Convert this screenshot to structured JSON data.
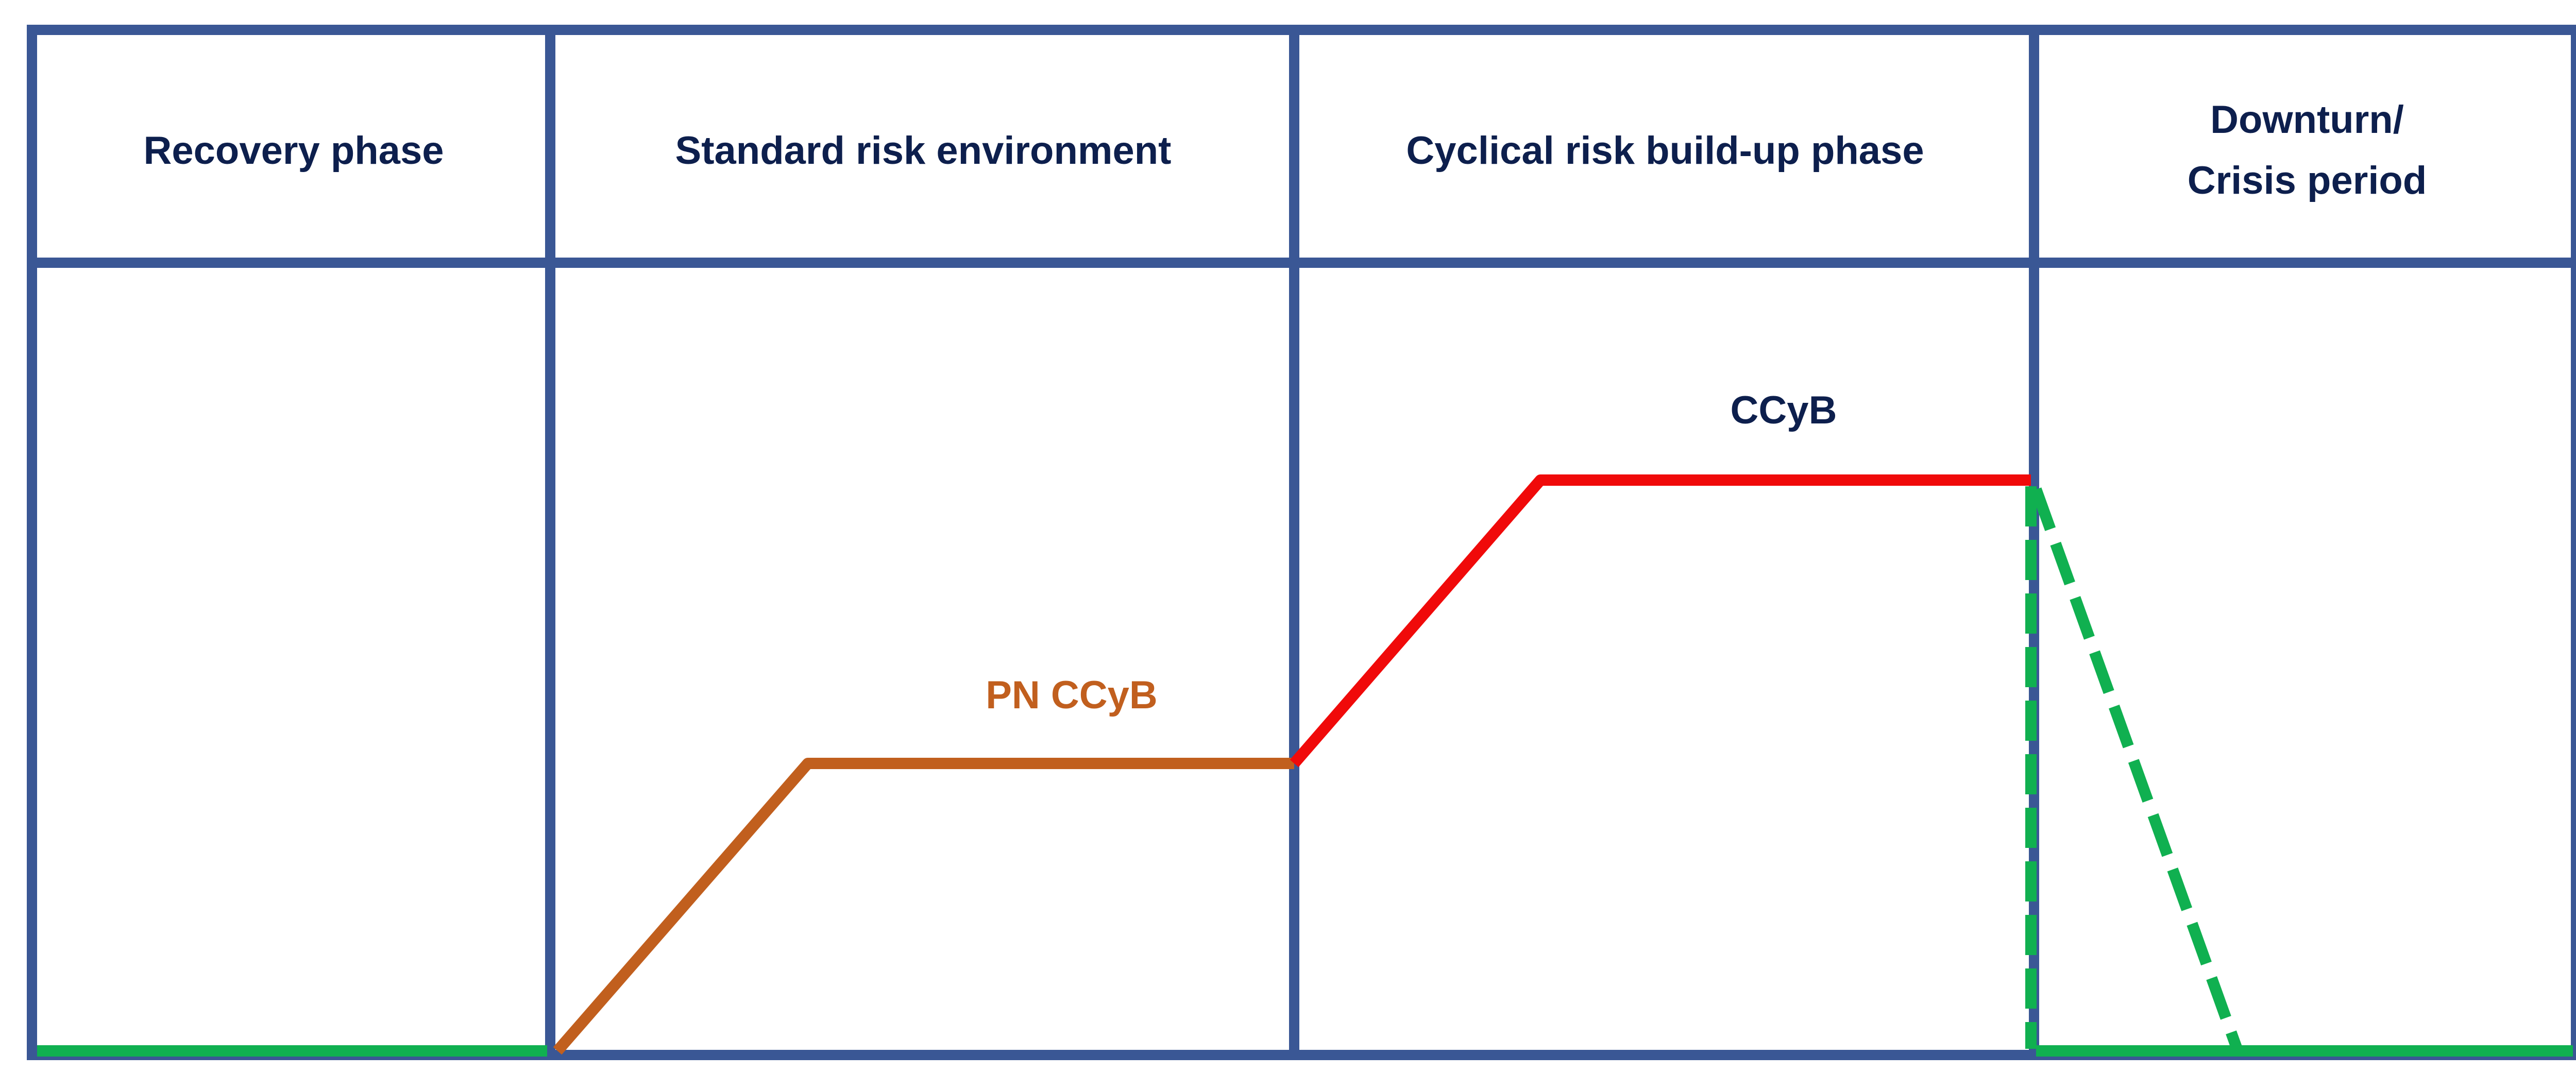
{
  "colors": {
    "grid": "#3a5795",
    "text": "#0d1f4d",
    "pn_ccyb": "#c15f1e",
    "ccyb": "#f00a0a",
    "release": "#10b050"
  },
  "phases": [
    {
      "label_lines": [
        "Recovery phase"
      ]
    },
    {
      "label_lines": [
        "Standard risk environment"
      ]
    },
    {
      "label_lines": [
        "Cyclical risk build-up phase"
      ]
    },
    {
      "label_lines": [
        "Downturn/",
        "Crisis period"
      ]
    }
  ],
  "buffers": {
    "pn_ccyb": {
      "label": "PN CCyB"
    },
    "ccyb": {
      "label": "CCyB"
    }
  }
}
